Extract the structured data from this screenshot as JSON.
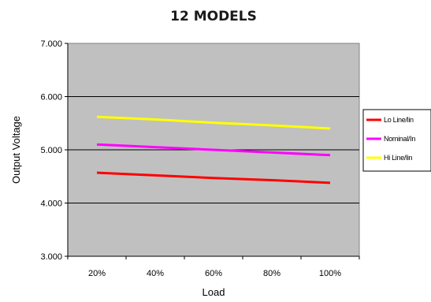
{
  "chart_data": {
    "type": "line",
    "title": "12 MODELS",
    "xlabel": "Load",
    "ylabel": "Output Voltage",
    "categories": [
      "20%",
      "40%",
      "60%",
      "80%",
      "100%"
    ],
    "ylim": [
      3.0,
      7.0
    ],
    "yticks": [
      "3.000",
      "4.000",
      "5.000",
      "6.000",
      "7.000"
    ],
    "grid": "horizontal",
    "legend_position": "right",
    "plot_background": "#c0c0c0",
    "series": [
      {
        "name": "Lo Line/lin",
        "color": "#ff0000",
        "values": [
          4.57,
          4.52,
          4.47,
          4.43,
          4.38
        ]
      },
      {
        "name": "Nominal/In",
        "color": "#ff00ff",
        "values": [
          5.1,
          5.05,
          5.0,
          4.95,
          4.9
        ]
      },
      {
        "name": "Hi Line/lin",
        "color": "#ffff00",
        "values": [
          5.62,
          5.57,
          5.51,
          5.46,
          5.4
        ]
      }
    ]
  }
}
